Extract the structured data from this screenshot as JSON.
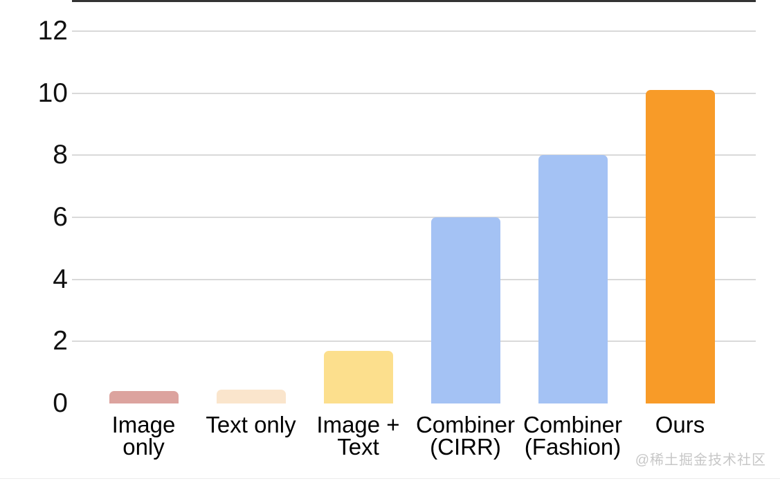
{
  "chart_data": {
    "type": "bar",
    "title": "",
    "xlabel": "",
    "ylabel": "",
    "categories": [
      "Image only",
      "Text only",
      "Image + Text",
      "Combiner (CIRR)",
      "Combiner (Fashion)",
      "Ours"
    ],
    "category_label_lines": [
      [
        "Image",
        "only"
      ],
      [
        "Text only"
      ],
      [
        "Image +",
        "Text"
      ],
      [
        "Combiner",
        "(CIRR)"
      ],
      [
        "Combiner",
        "(Fashion)"
      ],
      [
        "Ours"
      ]
    ],
    "values": [
      0.4,
      0.45,
      1.7,
      6,
      8,
      10.1
    ],
    "bar_colors": [
      "#dca39e",
      "#fae5cc",
      "#fcdf8d",
      "#a4c2f4",
      "#a4c2f4",
      "#f89b28"
    ],
    "ylim": [
      0,
      12
    ],
    "yticks": [
      0,
      2,
      4,
      6,
      8,
      10,
      12
    ],
    "grid": true,
    "legend_position": "none"
  },
  "watermark": {
    "text": "@稀土掘金技术社区"
  },
  "style": {
    "background": "#ffffff",
    "gridline_color": "#d9d9d9",
    "axis_line_color": "#333333",
    "tick_label_color": "#111111",
    "category_label_color": "#000000",
    "watermark_color": "#c7c7c7"
  }
}
